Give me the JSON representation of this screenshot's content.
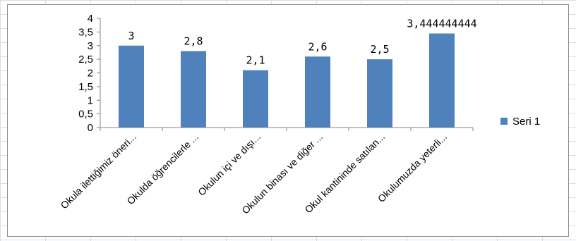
{
  "chart_data": {
    "type": "bar",
    "categories": [
      "Okula ilettiğimiz öneri...",
      "Okulda öğrencilerle ...",
      "Okulun içi ve dışı...",
      "Okulun binası ve diğer ...",
      "Okul kantininde satılan...",
      "Okulumuzda yeterli..."
    ],
    "series": [
      {
        "name": "Seri 1",
        "values": [
          3,
          2.8,
          2.1,
          2.6,
          2.5,
          3.444444444
        ],
        "data_labels": [
          "3",
          "2,8",
          "2,1",
          "2,6",
          "2,5",
          "3,444444444"
        ],
        "color": "#4f81bd"
      }
    ],
    "yticks": [
      "0",
      "0,5",
      "1",
      "1,5",
      "2",
      "2,5",
      "3",
      "3,5",
      "4"
    ],
    "ylim": [
      0,
      4
    ],
    "grid": false,
    "legend": "right"
  }
}
